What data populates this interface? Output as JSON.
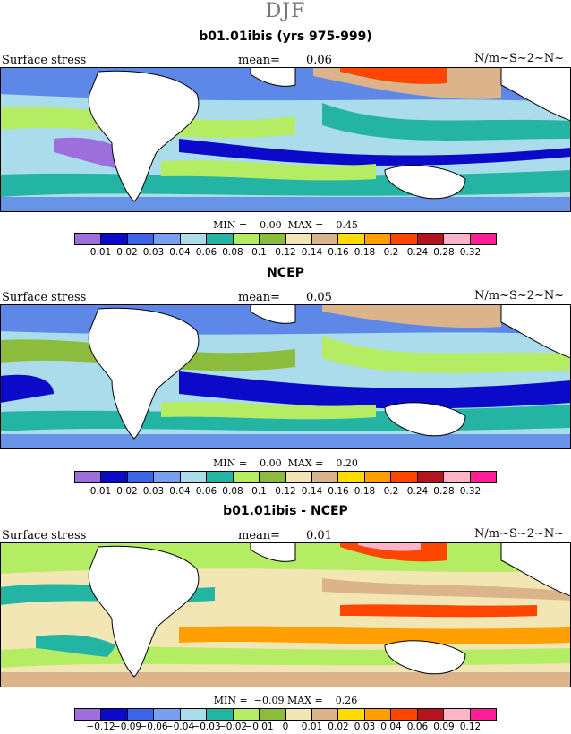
{
  "season": "DJF",
  "panels": [
    {
      "title": "b01.01ibis (yrs 975-999)",
      "field_label": "Surface stress",
      "mean_label": "mean=",
      "mean_value": "0.06",
      "units": "N/m~S~2~N~",
      "min_label": "MIN =",
      "min_value": "0.00",
      "max_label": "MAX =",
      "max_value": "0.45",
      "ticks": [
        "0.01",
        "0.02",
        "0.03",
        "0.04",
        "0.06",
        "0.08",
        "0.1",
        "0.12",
        "0.14",
        "0.16",
        "0.18",
        "0.2",
        "0.24",
        "0.28",
        "0.32"
      ]
    },
    {
      "title": "NCEP",
      "field_label": "Surface stress",
      "mean_label": "mean=",
      "mean_value": "0.05",
      "units": "N/m~S~2~N~",
      "min_label": "MIN =",
      "min_value": "0.00",
      "max_label": "MAX =",
      "max_value": "0.20",
      "ticks": [
        "0.01",
        "0.02",
        "0.03",
        "0.04",
        "0.06",
        "0.08",
        "0.1",
        "0.12",
        "0.14",
        "0.16",
        "0.18",
        "0.2",
        "0.24",
        "0.28",
        "0.32"
      ]
    },
    {
      "title": "b01.01ibis - NCEP",
      "field_label": "Surface stress",
      "mean_label": "mean=",
      "mean_value": "0.01",
      "units": "N/m~S~2~N~",
      "min_label": "MIN =",
      "min_value": "−0.09",
      "max_label": "MAX =",
      "max_value": "0.26",
      "ticks": [
        "−0.12",
        "−0.09",
        "−0.06",
        "−0.04",
        "−0.03",
        "−0.02",
        "−0.01",
        "0",
        "0.01",
        "0.02",
        "0.03",
        "0.04",
        "0.06",
        "0.09",
        "0.12"
      ]
    }
  ],
  "colorbar": [
    "#9c6fdc",
    "#0a0ac8",
    "#3c64e6",
    "#78a0ee",
    "#aadcec",
    "#24b4a4",
    "#b4ec64",
    "#8cbc3c",
    "#f2e6b4",
    "#dcb48c",
    "#ffdc00",
    "#ffa000",
    "#ff4600",
    "#b4141e",
    "#ffb4c8",
    "#ff1e96"
  ]
}
